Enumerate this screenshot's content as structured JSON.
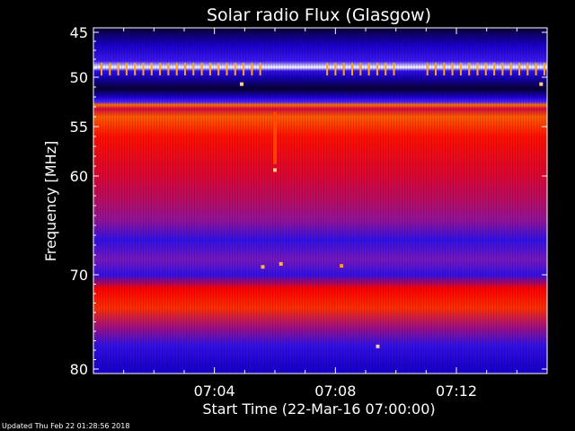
{
  "chart_data": {
    "type": "heatmap",
    "title": "Solar radio Flux (Glasgow)",
    "xlabel": "Start Time (22-Mar-16 07:00:00)",
    "ylabel": "Frequency [MHz]",
    "x_ticks": [
      "07:04",
      "07:08",
      "07:12"
    ],
    "y_ticks": [
      "45",
      "50",
      "55",
      "60",
      "70",
      "80"
    ],
    "y_tick_values": [
      45,
      50,
      55,
      60,
      70,
      80
    ],
    "x_tick_minutes": [
      4,
      8,
      12
    ],
    "xlim_minutes": [
      0,
      15
    ],
    "ylim_mhz": [
      44.8,
      80
    ],
    "y_scale": "nonlinear",
    "colormap": [
      "#000000",
      "#1a00cc",
      "#4a20ff",
      "#ff0000",
      "#ff9a00",
      "#ffffff"
    ],
    "band_profile": [
      {
        "mhz": 44.8,
        "level": 0.05
      },
      {
        "mhz": 45.8,
        "level": 0.15
      },
      {
        "mhz": 46.5,
        "level": 0.2
      },
      {
        "mhz": 48.2,
        "level": 0.35
      },
      {
        "mhz": 48.9,
        "level": 1.0
      },
      {
        "mhz": 49.3,
        "level": 0.3
      },
      {
        "mhz": 50.0,
        "level": 0.18
      },
      {
        "mhz": 51.2,
        "level": 0.05
      },
      {
        "mhz": 52.0,
        "level": 0.2
      },
      {
        "mhz": 52.5,
        "level": 0.4
      },
      {
        "mhz": 52.8,
        "level": 0.75
      },
      {
        "mhz": 53.2,
        "level": 0.55
      },
      {
        "mhz": 54.0,
        "level": 0.72
      },
      {
        "mhz": 56.0,
        "level": 0.62
      },
      {
        "mhz": 60.0,
        "level": 0.56
      },
      {
        "mhz": 62.5,
        "level": 0.52
      },
      {
        "mhz": 64.5,
        "level": 0.48
      },
      {
        "mhz": 66.5,
        "level": 0.3
      },
      {
        "mhz": 68.5,
        "level": 0.45
      },
      {
        "mhz": 70.0,
        "level": 0.3
      },
      {
        "mhz": 71.5,
        "level": 0.6
      },
      {
        "mhz": 73.5,
        "level": 0.66
      },
      {
        "mhz": 75.5,
        "level": 0.5
      },
      {
        "mhz": 77.5,
        "level": 0.3
      },
      {
        "mhz": 80.0,
        "level": 0.2
      }
    ],
    "bursts": [
      {
        "minute": 6.0,
        "mhz": 59.4,
        "level": 0.9
      },
      {
        "minute": 9.4,
        "mhz": 77.6,
        "level": 0.9
      },
      {
        "minute": 4.9,
        "mhz": 50.7,
        "level": 0.9
      },
      {
        "minute": 14.8,
        "mhz": 50.7,
        "level": 0.9
      },
      {
        "minute": 6.2,
        "mhz": 68.9,
        "level": 0.85
      },
      {
        "minute": 5.6,
        "mhz": 69.2,
        "level": 0.85
      },
      {
        "minute": 8.2,
        "mhz": 69.1,
        "level": 0.8
      }
    ]
  },
  "footer": "Updated Thu Feb 22 01:28:56 2018"
}
